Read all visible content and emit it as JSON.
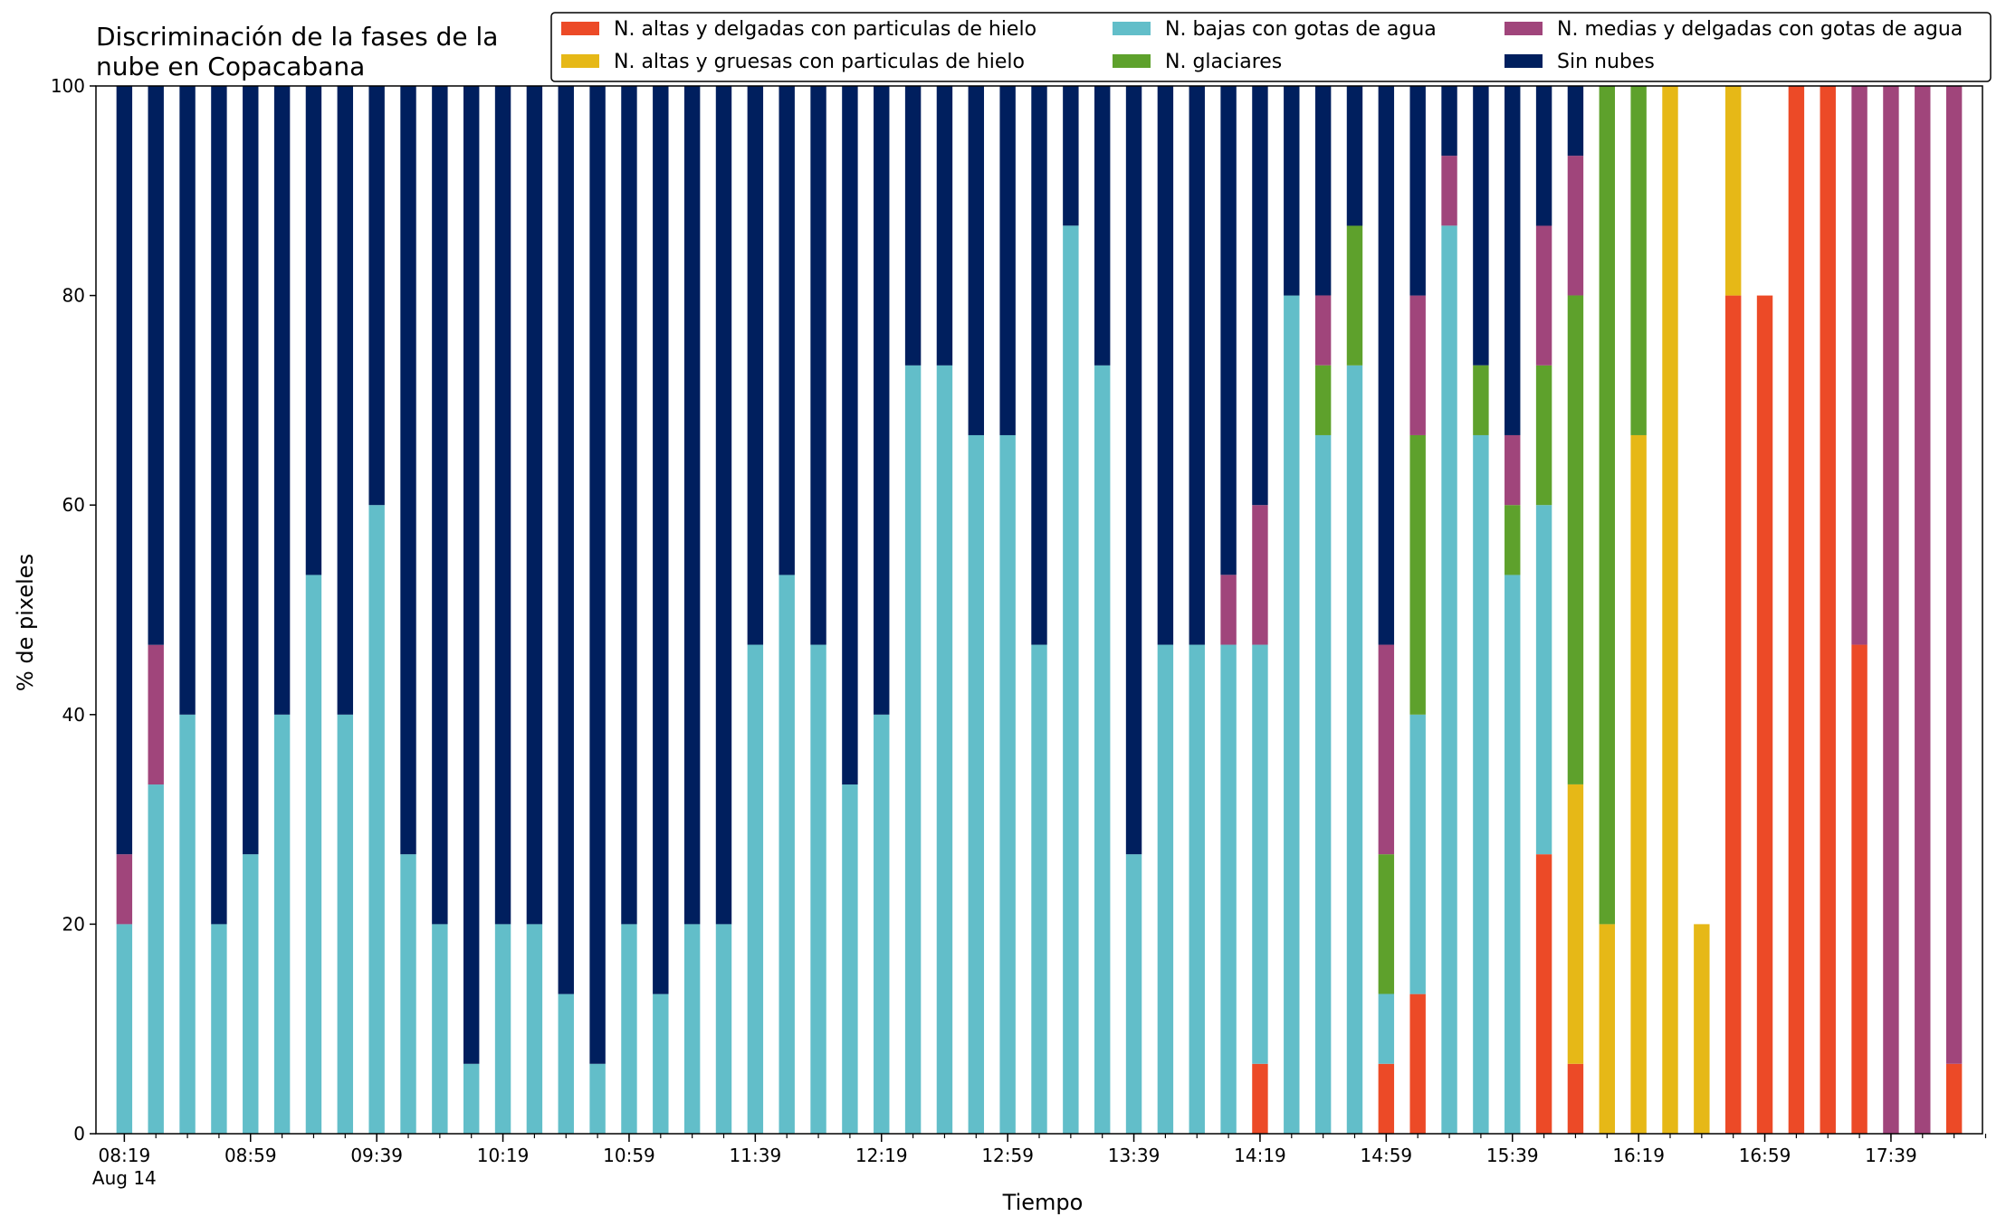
{
  "chart_data": {
    "type": "bar",
    "stacked": true,
    "title": "Discriminación de la fases de la nube en Copacabana",
    "title_lines": [
      "Discriminación de la fases de la",
      "nube en Copacabana"
    ],
    "xlabel": "Tiempo",
    "ylabel": "% de pixeles",
    "ylim": [
      0,
      100
    ],
    "yticks": [
      0,
      20,
      40,
      60,
      80,
      100
    ],
    "grid": false,
    "legend_position": "top-right",
    "x_tick_labels": [
      {
        "index": 0,
        "label": "08:19",
        "sublabel": "Aug 14"
      },
      {
        "index": 4,
        "label": "08:59"
      },
      {
        "index": 8,
        "label": "09:39"
      },
      {
        "index": 12,
        "label": "10:19"
      },
      {
        "index": 16,
        "label": "10:59"
      },
      {
        "index": 20,
        "label": "11:39"
      },
      {
        "index": 24,
        "label": "12:19"
      },
      {
        "index": 28,
        "label": "12:59"
      },
      {
        "index": 32,
        "label": "13:39"
      },
      {
        "index": 36,
        "label": "14:19"
      },
      {
        "index": 40,
        "label": "14:59"
      },
      {
        "index": 44,
        "label": "15:39"
      },
      {
        "index": 48,
        "label": "16:19"
      },
      {
        "index": 52,
        "label": "16:59"
      },
      {
        "index": 56,
        "label": "17:39"
      }
    ],
    "series": [
      {
        "name": "N. altas y delgadas con particulas de hielo",
        "color": "#ec4a27",
        "values": [
          0,
          0,
          0,
          0,
          0,
          0,
          0,
          0,
          0,
          0,
          0,
          0,
          0,
          0,
          0,
          0,
          0,
          0,
          0,
          0,
          0,
          0,
          0,
          0,
          0,
          0,
          0,
          0,
          0,
          0,
          0,
          0,
          0,
          0,
          0,
          0,
          6.67,
          0,
          0,
          0,
          6.67,
          13.33,
          0,
          0,
          0,
          26.67,
          6.67,
          0,
          0,
          0,
          0,
          80,
          80,
          100,
          100,
          46.67,
          0,
          0,
          6.67
        ]
      },
      {
        "name": "N. altas y gruesas con particulas de hielo",
        "color": "#e6b817",
        "values": [
          0,
          0,
          0,
          0,
          0,
          0,
          0,
          0,
          0,
          0,
          0,
          0,
          0,
          0,
          0,
          0,
          0,
          0,
          0,
          0,
          0,
          0,
          0,
          0,
          0,
          0,
          0,
          0,
          0,
          0,
          0,
          0,
          0,
          0,
          0,
          0,
          0,
          0,
          0,
          0,
          0,
          0,
          0,
          0,
          0,
          0,
          26.67,
          20,
          66.67,
          100,
          20,
          20,
          0,
          0,
          0,
          0,
          0,
          0,
          0
        ]
      },
      {
        "name": "N. bajas con gotas de agua",
        "color": "#62bec9",
        "values": [
          20,
          33.33,
          40,
          20,
          26.67,
          40,
          53.33,
          40,
          60,
          26.67,
          20,
          6.67,
          20,
          20,
          13.33,
          6.67,
          20,
          13.33,
          20,
          20,
          46.67,
          53.33,
          46.67,
          33.33,
          40,
          73.33,
          73.33,
          66.67,
          66.67,
          46.67,
          86.67,
          73.33,
          26.67,
          46.67,
          46.67,
          46.67,
          40,
          80,
          66.67,
          73.33,
          6.67,
          26.67,
          86.67,
          66.67,
          53.33,
          33.33,
          0,
          0,
          0,
          0,
          0,
          0,
          0,
          0,
          0,
          0,
          0,
          0,
          0
        ]
      },
      {
        "name": "N. glaciares",
        "color": "#5ea12c",
        "values": [
          0,
          0,
          0,
          0,
          0,
          0,
          0,
          0,
          0,
          0,
          0,
          0,
          0,
          0,
          0,
          0,
          0,
          0,
          0,
          0,
          0,
          0,
          0,
          0,
          0,
          0,
          0,
          0,
          0,
          0,
          0,
          0,
          0,
          0,
          0,
          0,
          0,
          0,
          6.67,
          13.33,
          13.33,
          26.67,
          0,
          6.67,
          6.67,
          13.33,
          46.67,
          80,
          33.33,
          0,
          0,
          0,
          0,
          0,
          0,
          0,
          0,
          0,
          0
        ]
      },
      {
        "name": "N. medias y delgadas con gotas de agua",
        "color": "#a0457b",
        "values": [
          6.67,
          13.33,
          0,
          0,
          0,
          0,
          0,
          0,
          0,
          0,
          0,
          0,
          0,
          0,
          0,
          0,
          0,
          0,
          0,
          0,
          0,
          0,
          0,
          0,
          0,
          0,
          0,
          0,
          0,
          0,
          0,
          0,
          0,
          0,
          0,
          6.67,
          13.33,
          0,
          6.67,
          0,
          20,
          13.33,
          6.67,
          0,
          6.67,
          13.33,
          13.33,
          0,
          0,
          0,
          0,
          0,
          0,
          0,
          0,
          53.33,
          100,
          100,
          93.33
        ]
      },
      {
        "name": "Sin nubes",
        "color": "#001f5e",
        "values": [
          73.33,
          53.33,
          60,
          80,
          73.33,
          60,
          46.67,
          60,
          40,
          73.33,
          80,
          93.33,
          80,
          80,
          86.67,
          93.33,
          80,
          86.67,
          80,
          80,
          53.33,
          46.67,
          53.33,
          66.67,
          60,
          26.67,
          26.67,
          33.33,
          33.33,
          53.33,
          13.33,
          26.67,
          73.33,
          53.33,
          53.33,
          46.67,
          40,
          20,
          20,
          13.33,
          53.33,
          20,
          6.67,
          26.67,
          33.33,
          13.33,
          6.67,
          0,
          0,
          0,
          0,
          0,
          0,
          0,
          0,
          0,
          0,
          0,
          0
        ]
      }
    ]
  }
}
